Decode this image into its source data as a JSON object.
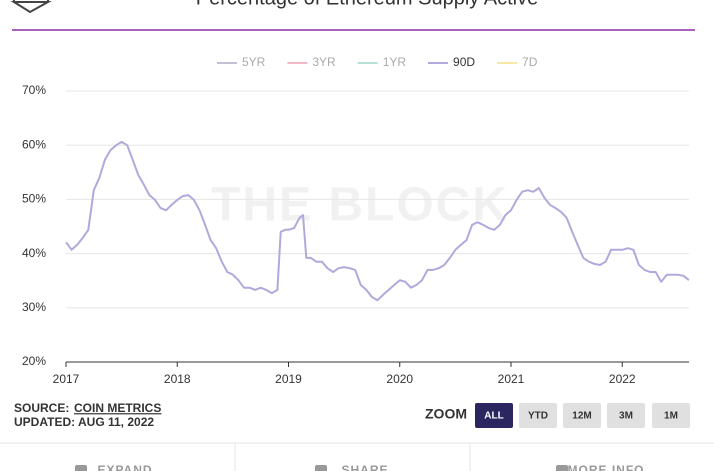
{
  "chart_data": {
    "type": "line",
    "title": "Percentage of Ethereum Supply Active",
    "watermark": "THE BLOCK",
    "x": [
      2017.0,
      2017.05,
      2017.1,
      2017.15,
      2017.2,
      2017.25,
      2017.3,
      2017.35,
      2017.4,
      2017.45,
      2017.5,
      2017.55,
      2017.6,
      2017.65,
      2017.7,
      2017.75,
      2017.8,
      2017.85,
      2017.9,
      2017.95,
      2018.0,
      2018.05,
      2018.1,
      2018.15,
      2018.2,
      2018.25,
      2018.3,
      2018.35,
      2018.4,
      2018.45,
      2018.5,
      2018.55,
      2018.6,
      2018.65,
      2018.7,
      2018.75,
      2018.8,
      2018.85,
      2018.9,
      2018.93,
      2018.97,
      2019.0,
      2019.05,
      2019.1,
      2019.13,
      2019.16,
      2019.2,
      2019.25,
      2019.3,
      2019.35,
      2019.4,
      2019.45,
      2019.5,
      2019.55,
      2019.6,
      2019.65,
      2019.7,
      2019.75,
      2019.8,
      2019.85,
      2019.9,
      2019.95,
      2020.0,
      2020.05,
      2020.1,
      2020.15,
      2020.2,
      2020.25,
      2020.3,
      2020.35,
      2020.4,
      2020.45,
      2020.5,
      2020.55,
      2020.6,
      2020.65,
      2020.7,
      2020.75,
      2020.8,
      2020.85,
      2020.9,
      2020.95,
      2021.0,
      2021.05,
      2021.1,
      2021.15,
      2021.2,
      2021.25,
      2021.3,
      2021.35,
      2021.4,
      2021.45,
      2021.5,
      2021.55,
      2021.6,
      2021.65,
      2021.7,
      2021.75,
      2021.8,
      2021.85,
      2021.9,
      2021.95,
      2022.0,
      2022.05,
      2022.1,
      2022.15,
      2022.2,
      2022.25,
      2022.3,
      2022.35,
      2022.4,
      2022.45,
      2022.5,
      2022.55,
      2022.6
    ],
    "series": [
      {
        "name": "5YR",
        "color": "#c2bfd6",
        "hidden": true
      },
      {
        "name": "3YR",
        "color": "#f2b8c6",
        "hidden": true
      },
      {
        "name": "1YR",
        "color": "#b5e0d8",
        "hidden": true
      },
      {
        "name": "90D",
        "color": "#b1a9dc",
        "values": [
          42.1,
          40.7,
          41.6,
          42.9,
          44.4,
          51.7,
          54,
          57.3,
          59.1,
          60,
          60.6,
          60,
          57.3,
          54.5,
          52.7,
          50.8,
          49.9,
          48.4,
          48,
          49,
          49.9,
          50.6,
          50.8,
          49.9,
          48,
          45.3,
          42.5,
          41,
          38.5,
          36.6,
          36.1,
          35.1,
          33.7,
          33.7,
          33.3,
          33.7,
          33.3,
          32.7,
          33.3,
          44,
          44.4,
          44.4,
          44.7,
          46.6,
          47.1,
          39.2,
          39.2,
          38.5,
          38.5,
          37.3,
          36.6,
          37.3,
          37.5,
          37.3,
          37,
          34.2,
          33.3,
          32,
          31.4,
          32.4,
          33.3,
          34.2,
          35.1,
          34.8,
          33.7,
          34.2,
          35.1,
          37,
          37,
          37.3,
          37.9,
          39.2,
          40.7,
          41.6,
          42.5,
          45.3,
          45.8,
          45.3,
          44.7,
          44.4,
          45.3,
          47.1,
          48,
          49.9,
          51.4,
          51.7,
          51.4,
          52.1,
          50.3,
          49,
          48.4,
          47.7,
          46.6,
          44,
          41.6,
          39.2,
          38.5,
          38.1,
          37.9,
          38.5,
          40.7,
          40.7,
          40.7,
          41,
          40.7,
          37.9,
          37,
          36.6,
          36.6,
          34.8,
          36.1,
          36.1,
          36.1,
          35.9,
          35.1
        ]
      },
      {
        "name": "7D",
        "color": "#f7e7a6",
        "hidden": true
      }
    ],
    "xlim": [
      2017.0,
      2022.6
    ],
    "xticks": [
      2017,
      2018,
      2019,
      2020,
      2021,
      2022
    ],
    "ylim": [
      20,
      70
    ],
    "yticks": [
      {
        "value": 20,
        "label": "20%"
      },
      {
        "value": 30,
        "label": "30%"
      },
      {
        "value": 40,
        "label": "40%"
      },
      {
        "value": 50,
        "label": "50%"
      },
      {
        "value": 60,
        "label": "60%"
      },
      {
        "value": 70,
        "label": "70%"
      }
    ],
    "grid": true,
    "legend": "top"
  },
  "source": {
    "label": "SOURCE:",
    "link": "COIN METRICS"
  },
  "updated": "UPDATED: AUG 11, 2022",
  "zoom": {
    "label": "ZOOM",
    "buttons": [
      "ALL",
      "YTD",
      "12M",
      "3M",
      "1M"
    ],
    "active": 0
  },
  "footer": [
    "EXPAND",
    "SHARE",
    "MORE INFO"
  ]
}
